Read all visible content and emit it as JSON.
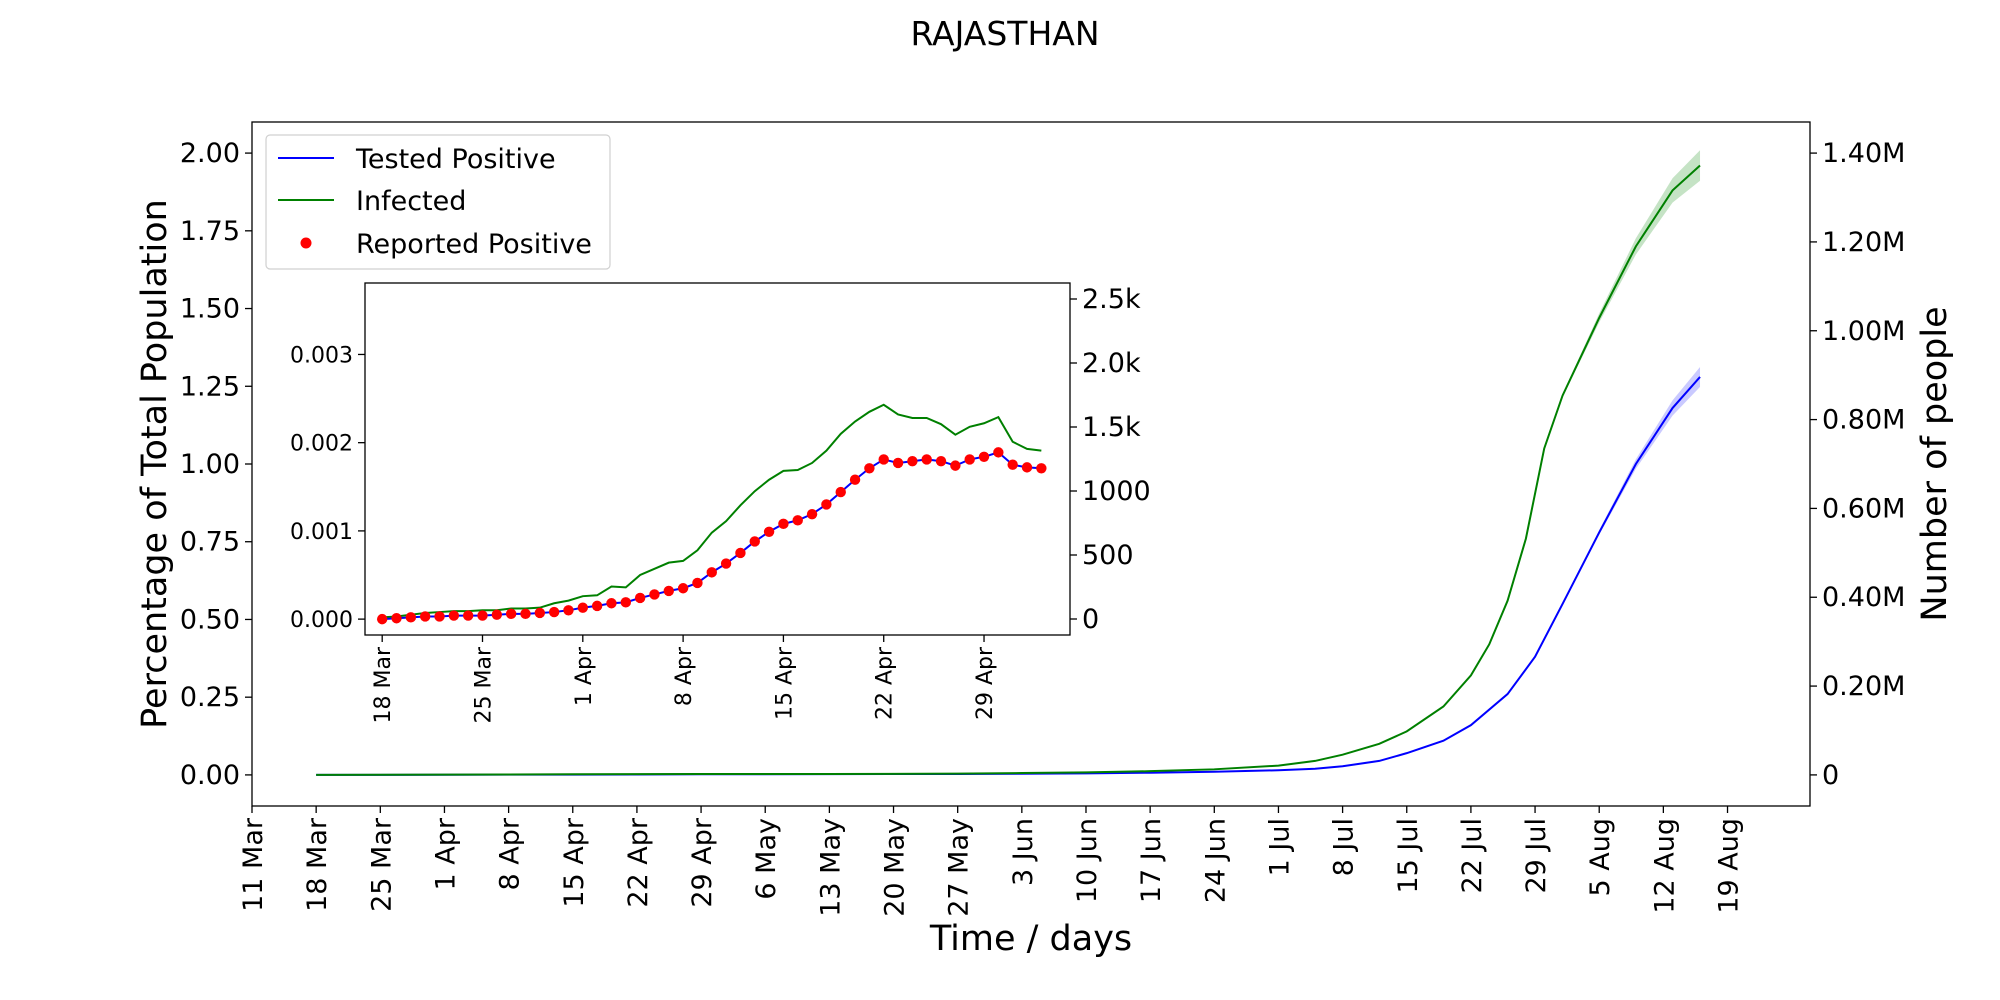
{
  "chart_data": {
    "type": "line",
    "title": "RAJASTHAN",
    "main": {
      "xlabel": "Time / days",
      "ylabel": "Percentage of Total Population",
      "y2label": "Number of people",
      "xlim": [
        -7,
        163
      ],
      "ylim": [
        -0.1,
        2.1
      ],
      "y2lim": [
        -70000,
        1470000
      ],
      "x_ticks": [
        {
          "day": -7,
          "label": "11 Mar"
        },
        {
          "day": 0,
          "label": "18 Mar"
        },
        {
          "day": 7,
          "label": "25 Mar"
        },
        {
          "day": 14,
          "label": "1 Apr"
        },
        {
          "day": 21,
          "label": "8 Apr"
        },
        {
          "day": 28,
          "label": "15 Apr"
        },
        {
          "day": 35,
          "label": "22 Apr"
        },
        {
          "day": 42,
          "label": "29 Apr"
        },
        {
          "day": 49,
          "label": "6 May"
        },
        {
          "day": 56,
          "label": "13 May"
        },
        {
          "day": 63,
          "label": "20 May"
        },
        {
          "day": 70,
          "label": "27 May"
        },
        {
          "day": 77,
          "label": "3 Jun"
        },
        {
          "day": 84,
          "label": "10 Jun"
        },
        {
          "day": 91,
          "label": "17 Jun"
        },
        {
          "day": 98,
          "label": "24 Jun"
        },
        {
          "day": 105,
          "label": "1 Jul"
        },
        {
          "day": 112,
          "label": "8 Jul"
        },
        {
          "day": 119,
          "label": "15 Jul"
        },
        {
          "day": 126,
          "label": "22 Jul"
        },
        {
          "day": 133,
          "label": "29 Jul"
        },
        {
          "day": 140,
          "label": "5 Aug"
        },
        {
          "day": 147,
          "label": "12 Aug"
        },
        {
          "day": 154,
          "label": "19 Aug"
        }
      ],
      "y_ticks": [
        {
          "v": 0.0,
          "label": "0.00"
        },
        {
          "v": 0.25,
          "label": "0.25"
        },
        {
          "v": 0.5,
          "label": "0.50"
        },
        {
          "v": 0.75,
          "label": "0.75"
        },
        {
          "v": 1.0,
          "label": "1.00"
        },
        {
          "v": 1.25,
          "label": "1.25"
        },
        {
          "v": 1.5,
          "label": "1.50"
        },
        {
          "v": 1.75,
          "label": "1.75"
        },
        {
          "v": 2.0,
          "label": "2.00"
        }
      ],
      "y2_ticks": [
        {
          "v": 0,
          "label": "0"
        },
        {
          "v": 200000,
          "label": "0.20M"
        },
        {
          "v": 400000,
          "label": "0.40M"
        },
        {
          "v": 600000,
          "label": "0.60M"
        },
        {
          "v": 800000,
          "label": "0.80M"
        },
        {
          "v": 1000000,
          "label": "1.00M"
        },
        {
          "v": 1200000,
          "label": "1.20M"
        },
        {
          "v": 1400000,
          "label": "1.40M"
        }
      ],
      "legend": {
        "placement": "top-left",
        "entries": [
          {
            "label": "Tested Positive",
            "kind": "line",
            "color": "#0000ff"
          },
          {
            "label": "Infected",
            "kind": "line",
            "color": "#008000"
          },
          {
            "label": "Reported Positive",
            "kind": "dot",
            "color": "#ff0000"
          }
        ]
      },
      "series": [
        {
          "name": "Tested Positive",
          "color": "#0000ff",
          "band_color": "#8a8aff",
          "band_after_day": 133,
          "x": [
            0,
            14,
            28,
            42,
            56,
            70,
            84,
            91,
            98,
            105,
            109,
            112,
            116,
            119,
            123,
            126,
            130,
            133,
            136,
            140,
            144,
            148,
            151
          ],
          "y": [
            0.0,
            0.0005,
            0.001,
            0.002,
            0.0025,
            0.003,
            0.005,
            0.007,
            0.01,
            0.015,
            0.02,
            0.028,
            0.045,
            0.07,
            0.11,
            0.16,
            0.26,
            0.38,
            0.55,
            0.78,
            1.0,
            1.18,
            1.28
          ]
        },
        {
          "name": "Infected",
          "color": "#008000",
          "band_color": "#7fc07f",
          "band_after_day": 133,
          "x": [
            0,
            14,
            28,
            42,
            56,
            70,
            77,
            84,
            91,
            98,
            105,
            109,
            112,
            116,
            119,
            123,
            126,
            128,
            130,
            132,
            134,
            136,
            140,
            144,
            148,
            151
          ],
          "y": [
            0.0,
            0.001,
            0.002,
            0.003,
            0.003,
            0.004,
            0.006,
            0.008,
            0.012,
            0.018,
            0.03,
            0.045,
            0.065,
            0.1,
            0.14,
            0.22,
            0.32,
            0.42,
            0.56,
            0.76,
            1.05,
            1.22,
            1.47,
            1.7,
            1.88,
            1.96
          ]
        }
      ]
    },
    "inset": {
      "xlim": [
        -1.2,
        48
      ],
      "ylim": [
        -0.00018,
        0.00381
      ],
      "y2lim": [
        -125,
        2625
      ],
      "x_ticks": [
        {
          "day": 0,
          "label": "18 Mar"
        },
        {
          "day": 7,
          "label": "25 Mar"
        },
        {
          "day": 14,
          "label": "1 Apr"
        },
        {
          "day": 21,
          "label": "8 Apr"
        },
        {
          "day": 28,
          "label": "15 Apr"
        },
        {
          "day": 35,
          "label": "22 Apr"
        },
        {
          "day": 42,
          "label": "29 Apr"
        }
      ],
      "y_ticks": [
        {
          "v": 0.0,
          "label": "0.000"
        },
        {
          "v": 0.001,
          "label": "0.001"
        },
        {
          "v": 0.002,
          "label": "0.002"
        },
        {
          "v": 0.003,
          "label": "0.003"
        }
      ],
      "y2_ticks": [
        {
          "v": 0,
          "label": "0"
        },
        {
          "v": 500,
          "label": "500"
        },
        {
          "v": 1000,
          "label": "1000"
        },
        {
          "v": 1500,
          "label": "1.5k"
        },
        {
          "v": 2000,
          "label": "2.0k"
        },
        {
          "v": 2500,
          "label": "2.5k"
        }
      ],
      "infected": {
        "name": "Infected",
        "color": "#008000",
        "x": [
          0,
          1,
          2,
          3,
          4,
          5,
          6,
          7,
          8,
          9,
          10,
          11,
          12,
          13,
          14,
          15,
          16,
          17,
          18,
          19,
          20,
          21,
          22,
          23,
          24,
          25,
          26,
          27,
          28,
          29,
          30,
          31,
          32,
          33,
          34,
          35,
          36,
          37,
          38,
          39,
          40,
          41,
          42,
          43,
          44,
          45,
          46
        ],
        "y": [
          2e-05,
          3e-05,
          5e-05,
          7e-05,
          8e-05,
          9e-05,
          9e-05,
          0.0001,
          0.0001,
          0.00012,
          0.00012,
          0.00013,
          0.00018,
          0.00021,
          0.00026,
          0.00027,
          0.00037,
          0.00036,
          0.0005,
          0.00057,
          0.00064,
          0.00066,
          0.00078,
          0.00098,
          0.00111,
          0.00129,
          0.00145,
          0.00158,
          0.00168,
          0.00169,
          0.00177,
          0.00191,
          0.0021,
          0.00224,
          0.00235,
          0.00243,
          0.00232,
          0.00228,
          0.00228,
          0.00221,
          0.00209,
          0.00218,
          0.00222,
          0.00229,
          0.00201,
          0.00193,
          0.00191
        ]
      },
      "tested": {
        "name": "Tested Positive",
        "color": "#0000ff",
        "x": [
          0,
          1,
          2,
          3,
          4,
          5,
          6,
          7,
          8,
          9,
          10,
          11,
          12,
          13,
          14,
          15,
          16,
          17,
          18,
          19,
          20,
          21,
          22,
          23,
          24,
          25,
          26,
          27,
          28,
          29,
          30,
          31,
          32,
          33,
          34,
          35,
          36,
          37,
          38,
          39,
          40,
          41,
          42,
          43,
          44,
          45,
          46
        ],
        "y": [
          0.0,
          1e-05,
          2e-05,
          3e-05,
          3e-05,
          4e-05,
          4e-05,
          4e-05,
          5e-05,
          6e-05,
          6e-05,
          7e-05,
          8e-05,
          0.0001,
          0.00013,
          0.00015,
          0.00018,
          0.00019,
          0.00024,
          0.00028,
          0.00032,
          0.00035,
          0.00041,
          0.00053,
          0.00063,
          0.00075,
          0.00088,
          0.00099,
          0.00108,
          0.00112,
          0.00119,
          0.0013,
          0.00144,
          0.00158,
          0.00171,
          0.00181,
          0.00177,
          0.00179,
          0.00181,
          0.00179,
          0.00174,
          0.00181,
          0.00184,
          0.00189,
          0.00175,
          0.00172,
          0.00171
        ]
      },
      "reported": {
        "name": "Reported Positive",
        "color": "#ff0000",
        "x": [
          0,
          1,
          2,
          3,
          4,
          5,
          6,
          7,
          8,
          9,
          10,
          11,
          12,
          13,
          14,
          15,
          16,
          17,
          18,
          19,
          20,
          21,
          22,
          23,
          24,
          25,
          26,
          27,
          28,
          29,
          30,
          31,
          32,
          33,
          34,
          35,
          36,
          37,
          38,
          39,
          40,
          41,
          42,
          43,
          44,
          45,
          46
        ],
        "y": [
          0.0,
          1e-05,
          2e-05,
          3e-05,
          3e-05,
          4e-05,
          4e-05,
          4e-05,
          5e-05,
          6e-05,
          6e-05,
          7e-05,
          8e-05,
          0.0001,
          0.00013,
          0.00015,
          0.00018,
          0.00019,
          0.00024,
          0.00028,
          0.00032,
          0.00035,
          0.00041,
          0.00053,
          0.00063,
          0.00075,
          0.00088,
          0.00099,
          0.00108,
          0.00112,
          0.00119,
          0.0013,
          0.00144,
          0.00158,
          0.00171,
          0.00181,
          0.00177,
          0.00179,
          0.00181,
          0.00179,
          0.00174,
          0.00181,
          0.00184,
          0.00189,
          0.00175,
          0.00172,
          0.00171
        ]
      }
    }
  }
}
